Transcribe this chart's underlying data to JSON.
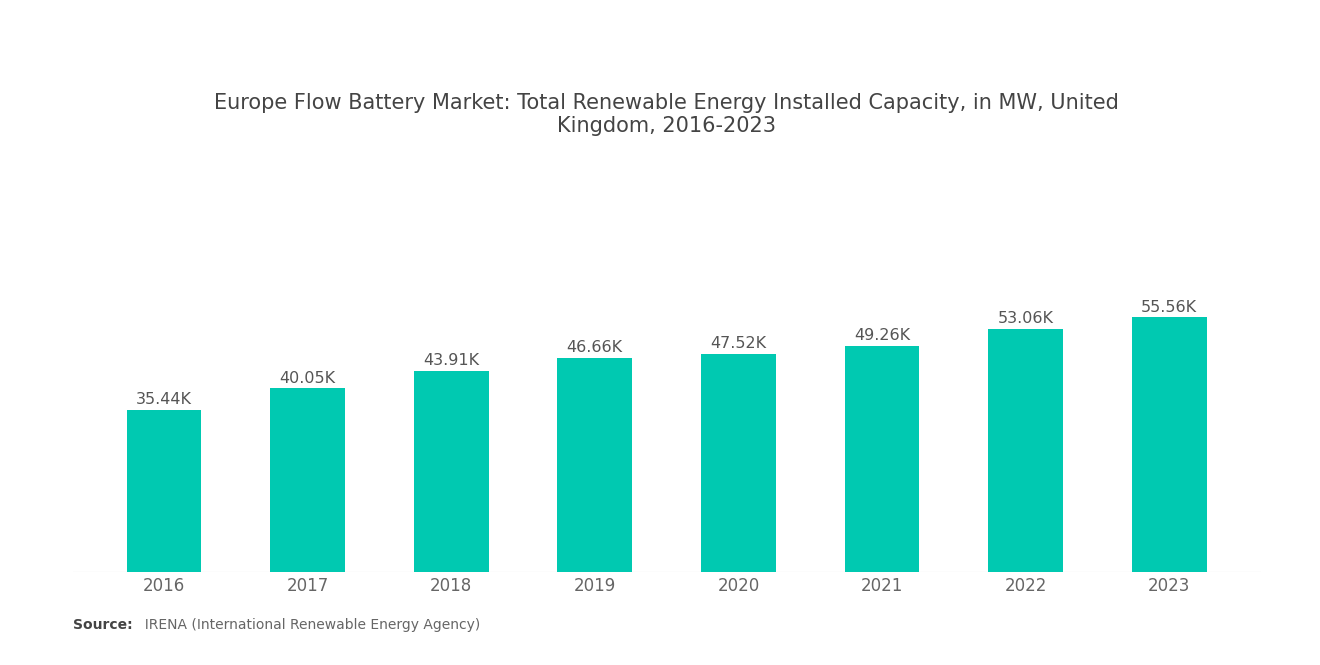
{
  "title": "Europe Flow Battery Market: Total Renewable Energy Installed Capacity, in MW, United\nKingdom, 2016-2023",
  "years": [
    "2016",
    "2017",
    "2018",
    "2019",
    "2020",
    "2021",
    "2022",
    "2023"
  ],
  "values": [
    35440,
    40050,
    43910,
    46660,
    47520,
    49260,
    53060,
    55560
  ],
  "labels": [
    "35.44K",
    "40.05K",
    "43.91K",
    "46.66K",
    "47.52K",
    "49.26K",
    "53.06K",
    "55.56K"
  ],
  "bar_color": "#00C9B1",
  "background_color": "#ffffff",
  "title_fontsize": 15,
  "label_fontsize": 11.5,
  "tick_fontsize": 12,
  "source_bold": "Source:",
  "source_normal": "  IRENA (International Renewable Energy Agency)",
  "ylim": [
    0,
    90000
  ],
  "bar_width": 0.52,
  "title_color": "#444444",
  "tick_color": "#666666",
  "label_color": "#555555",
  "source_fontsize": 10
}
